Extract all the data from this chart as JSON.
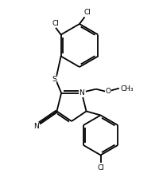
{
  "bg_color": "#ffffff",
  "line_color": "#000000",
  "lw": 1.3,
  "fs": 6.5,
  "figsize": [
    2.01,
    2.42
  ],
  "dpi": 100,
  "xlim": [
    0,
    201
  ],
  "ylim": [
    0,
    242
  ]
}
